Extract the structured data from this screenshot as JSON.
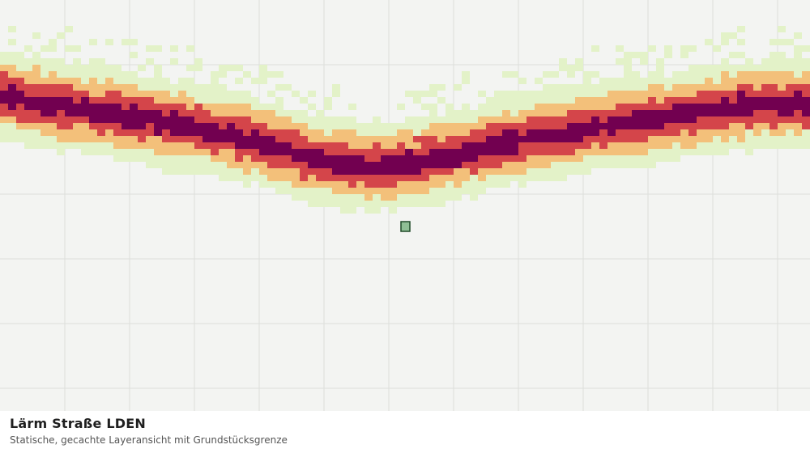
{
  "map": {
    "title": "Lärm Straße LDEN",
    "subtitle": "Statische, gecachte Layeransicht mit Grundstücksgrenze",
    "colors": {
      "background": "#f3f4f2",
      "grid": "#dcdedb",
      "noise_low": "#e3f2c8",
      "noise_mid": "#f3c07a",
      "noise_high": "#d4454a",
      "noise_max": "#720050",
      "parcel_fill": "#8fbf95",
      "parcel_stroke": "#1f4a28"
    }
  }
}
